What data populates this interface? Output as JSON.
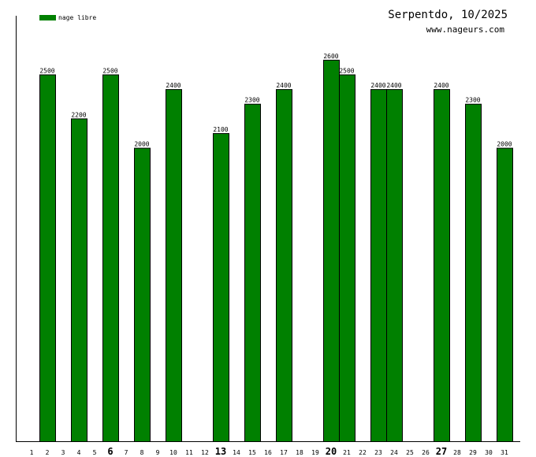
{
  "chart_data": {
    "type": "bar",
    "title": "Serpentdo, 10/2025",
    "subtitle": "www.nageurs.com",
    "legend": {
      "placement": "top-left",
      "entries": [
        "nage libre"
      ]
    },
    "series": [
      {
        "name": "nage libre",
        "color": "#008000",
        "values": [
          null,
          2500,
          null,
          2200,
          null,
          2500,
          null,
          2000,
          null,
          2400,
          null,
          null,
          2100,
          null,
          2300,
          null,
          2400,
          null,
          null,
          2600,
          2500,
          null,
          2400,
          2400,
          null,
          null,
          2400,
          null,
          2300,
          null,
          2000
        ]
      }
    ],
    "categories": [
      "1",
      "2",
      "3",
      "4",
      "5",
      "6",
      "7",
      "8",
      "9",
      "10",
      "11",
      "12",
      "13",
      "14",
      "15",
      "16",
      "17",
      "18",
      "19",
      "20",
      "21",
      "22",
      "23",
      "24",
      "25",
      "26",
      "27",
      "28",
      "29",
      "30",
      "31"
    ],
    "emphasized_categories": [
      "6",
      "13",
      "20",
      "27"
    ],
    "data_labels": [
      "2500",
      "2200",
      "2500",
      "2000",
      "2400",
      "2100",
      "2300",
      "2400",
      "2600",
      "2500",
      "2400",
      "2400",
      "2400",
      "2300",
      "2000"
    ],
    "ylim": [
      0,
      2900
    ],
    "grid": false,
    "xlabel": "",
    "ylabel": ""
  }
}
